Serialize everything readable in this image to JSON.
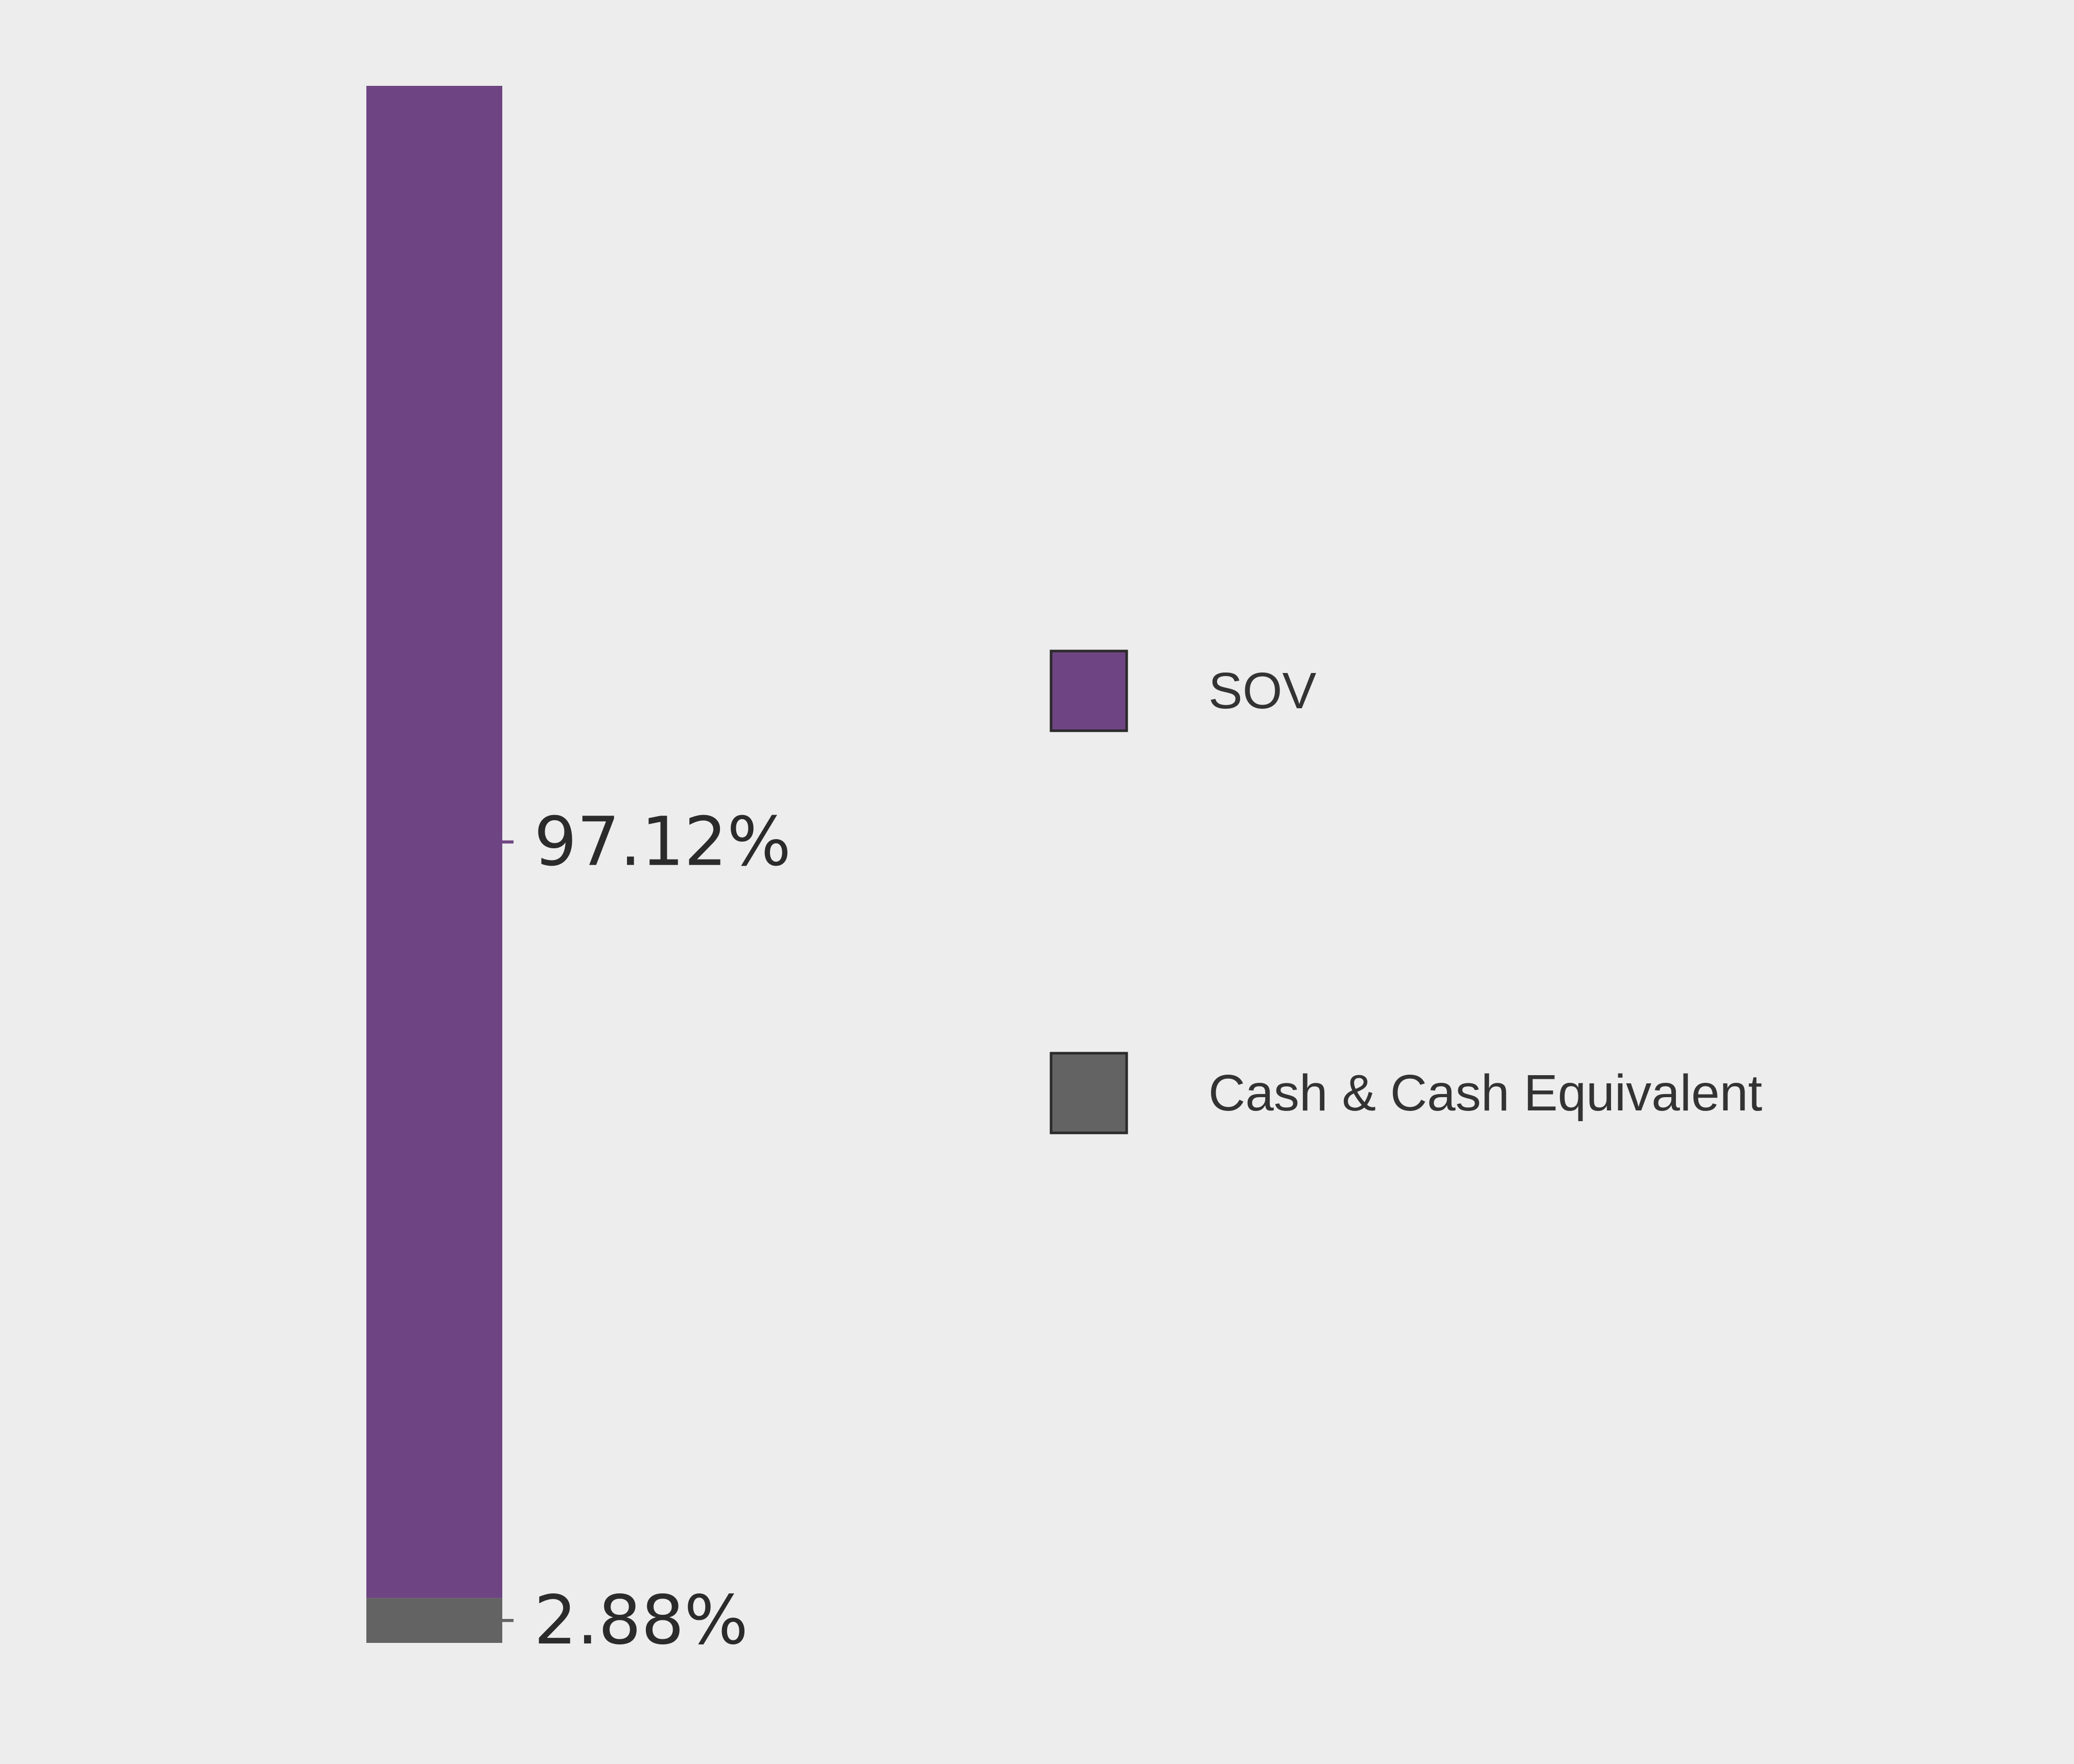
{
  "chart_data": {
    "type": "bar",
    "stacked": true,
    "orientation": "vertical",
    "categories": [
      ""
    ],
    "series": [
      {
        "name": "SOV",
        "values": [
          97.12
        ],
        "label": "97.12%",
        "color": "#6e4582"
      },
      {
        "name": "Cash & Cash Equivalent",
        "values": [
          2.88
        ],
        "label": "2.88%",
        "color": "#636363"
      }
    ],
    "ylim": [
      0,
      100
    ],
    "grid": false,
    "legend_position": "right"
  }
}
